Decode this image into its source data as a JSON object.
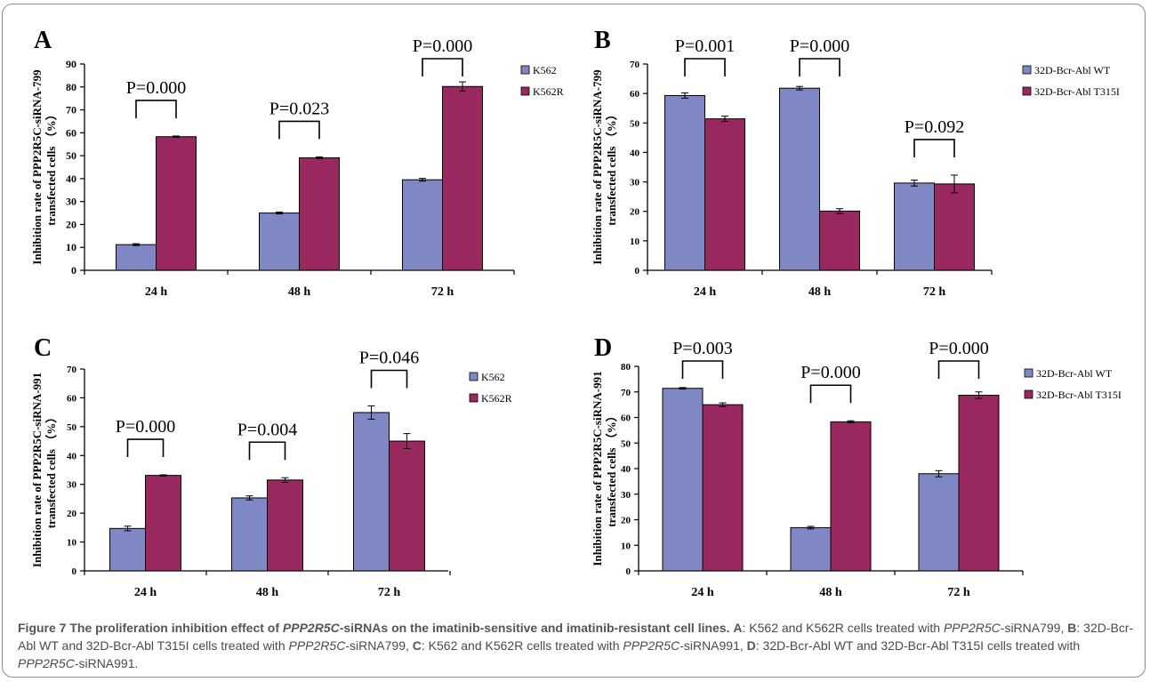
{
  "chart_data": [
    {
      "panel": "A",
      "type": "bar",
      "categories": [
        "24 h",
        "48 h",
        "72 h"
      ],
      "series": [
        {
          "name": "K562",
          "values": [
            11.2,
            25.0,
            39.5
          ],
          "errors": [
            0.4,
            0.4,
            0.6
          ]
        },
        {
          "name": "K562R",
          "values": [
            58.3,
            49.1,
            80.2
          ],
          "errors": [
            0.3,
            0.4,
            2.0
          ]
        }
      ],
      "ylabel": [
        "Inhibition rate of PPP2R5C-siRNA-799",
        "transfected cells （%）"
      ],
      "ylim": [
        0,
        90
      ],
      "yticks": [
        0,
        10,
        20,
        30,
        40,
        50,
        60,
        70,
        80,
        90
      ],
      "pvalues": [
        "P=0.000",
        "P=0.023",
        "P=0.000"
      ],
      "legend": "right",
      "grid": false
    },
    {
      "panel": "B",
      "type": "bar",
      "categories": [
        "24 h",
        "48 h",
        "72 h"
      ],
      "series": [
        {
          "name": "32D-Bcr-Abl WT",
          "values": [
            59.3,
            61.8,
            29.6
          ],
          "errors": [
            0.9,
            0.6,
            1.0
          ]
        },
        {
          "name": "32D-Bcr-Abl T315I",
          "values": [
            51.4,
            20.1,
            29.3
          ],
          "errors": [
            0.9,
            0.8,
            3.0
          ]
        }
      ],
      "ylabel": [
        "Inhibition rate of PPP2R5C-siRNA-799",
        "transfected cells （%）"
      ],
      "ylim": [
        0,
        70
      ],
      "yticks": [
        0,
        10,
        20,
        30,
        40,
        50,
        60,
        70
      ],
      "pvalues": [
        "P=0.001",
        "P=0.000",
        "P=0.092"
      ],
      "legend": "right",
      "grid": false
    },
    {
      "panel": "C",
      "type": "bar",
      "categories": [
        "24 h",
        "48 h",
        "72 h"
      ],
      "series": [
        {
          "name": "K562",
          "values": [
            14.7,
            25.3,
            54.9
          ],
          "errors": [
            0.8,
            0.7,
            2.3
          ]
        },
        {
          "name": "K562R",
          "values": [
            33.1,
            31.5,
            45.0
          ],
          "errors": [
            0.2,
            0.8,
            2.6
          ]
        }
      ],
      "ylabel": [
        "Inhibition rate of PPP2R5C-siRNA-991",
        "transfected cells （%）"
      ],
      "ylim": [
        0,
        70
      ],
      "yticks": [
        0,
        10,
        20,
        30,
        40,
        50,
        60,
        70
      ],
      "pvalues": [
        "P=0.000",
        "P=0.004",
        "P=0.046"
      ],
      "legend": "right",
      "grid": false
    },
    {
      "panel": "D",
      "type": "bar",
      "categories": [
        "24 h",
        "48 h",
        "72 h"
      ],
      "series": [
        {
          "name": "32D-Bcr-Abl WT",
          "values": [
            71.4,
            16.9,
            38.0
          ],
          "errors": [
            0.3,
            0.5,
            1.2
          ]
        },
        {
          "name": "32D-Bcr-Abl T315I",
          "values": [
            65.0,
            58.3,
            68.7
          ],
          "errors": [
            0.7,
            0.4,
            1.3
          ]
        }
      ],
      "ylabel": [
        "Inhibition rate of PPP2R5C-siRNA-991",
        "transfected cells （%）"
      ],
      "ylim": [
        0,
        80
      ],
      "yticks": [
        0,
        10,
        20,
        30,
        40,
        50,
        60,
        70,
        80
      ],
      "pvalues": [
        "P=0.003",
        "P=0.000",
        "P=0.000"
      ],
      "legend": "right",
      "grid": false
    }
  ],
  "colors": {
    "series1": "#7f88c4",
    "series2": "#98285e",
    "axis": "#000000"
  },
  "caption": {
    "label": "Figure 7",
    "title_pre": "The proliferation inhibition effect of ",
    "title_gene": "PPP2R5C",
    "title_post": "-siRNAs on the imatinib-sensitive and imatinib-resistant cell lines.",
    "a_label": "A",
    "a_text1": ": K562 and K562R cells treated with ",
    "a_gene": "PPP2R5C",
    "a_text2": "-siRNA799, ",
    "b_label": "B",
    "b_text1": ": 32D-Bcr-Abl WT and 32D-Bcr-Abl T315I cells treated with ",
    "b_gene": "PPP2R5C",
    "b_text2": "-siRNA799, ",
    "c_label": "C",
    "c_text1": ": K562 and K562R cells treated with ",
    "c_gene": "PPP2R5C",
    "c_text2": "-siRNA991, ",
    "d_label": "D",
    "d_text1": ": 32D-Bcr-Abl WT and 32D-Bcr-Abl T315I cells treated with ",
    "d_gene": "PPP2R5C",
    "d_text2": "-siRNA991."
  }
}
